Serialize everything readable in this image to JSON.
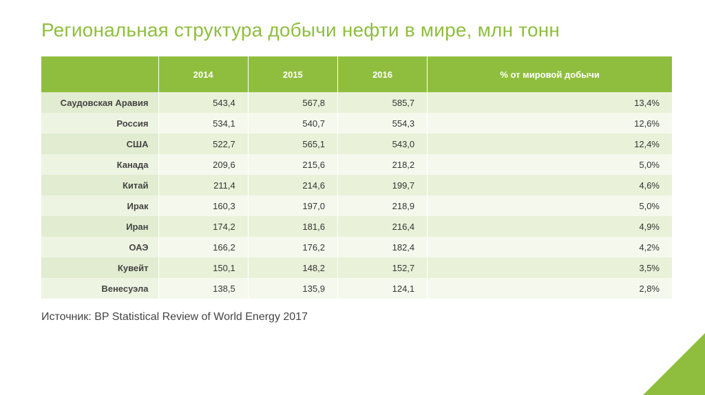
{
  "title": "Региональная структура добычи нефти в мире, млн тонн",
  "table": {
    "type": "table",
    "header_bg": "#8fbe3f",
    "header_text_color": "#ffffff",
    "row_odd_bg": "#e9f1d9",
    "row_even_bg": "#f5f9ed",
    "font_size": 13,
    "columns": [
      "",
      "2014",
      "2015",
      "2016",
      "% от мировой добычи"
    ],
    "rows": [
      {
        "label": "Саудовская Аравия",
        "v2014": "543,4",
        "v2015": "567,8",
        "v2016": "585,7",
        "pct": "13,4%"
      },
      {
        "label": "Россия",
        "v2014": "534,1",
        "v2015": "540,7",
        "v2016": "554,3",
        "pct": "12,6%"
      },
      {
        "label": "США",
        "v2014": "522,7",
        "v2015": "565,1",
        "v2016": "543,0",
        "pct": "12,4%"
      },
      {
        "label": "Канада",
        "v2014": "209,6",
        "v2015": "215,6",
        "v2016": "218,2",
        "pct": "5,0%"
      },
      {
        "label": "Китай",
        "v2014": "211,4",
        "v2015": "214,6",
        "v2016": "199,7",
        "pct": "4,6%"
      },
      {
        "label": "Ирак",
        "v2014": "160,3",
        "v2015": "197,0",
        "v2016": "218,9",
        "pct": "5,0%"
      },
      {
        "label": "Иран",
        "v2014": "174,2",
        "v2015": "181,6",
        "v2016": "216,4",
        "pct": "4,9%"
      },
      {
        "label": "ОАЭ",
        "v2014": "166,2",
        "v2015": "176,2",
        "v2016": "182,4",
        "pct": "4,2%"
      },
      {
        "label": "Кувейт",
        "v2014": "150,1",
        "v2015": "148,2",
        "v2016": "152,7",
        "pct": "3,5%"
      },
      {
        "label": "Венесуэла",
        "v2014": "138,5",
        "v2015": "135,9",
        "v2016": "124,1",
        "pct": "2,8%"
      }
    ]
  },
  "source": "Источник: BP Statistical Review of World Energy 2017",
  "accent_color": "#8fbe3f",
  "background_color": "#ffffff"
}
